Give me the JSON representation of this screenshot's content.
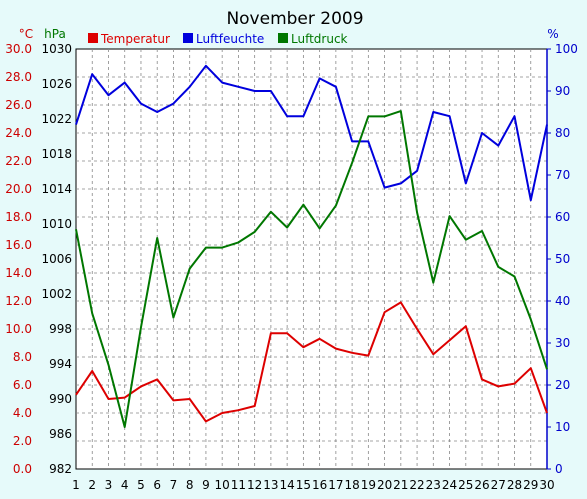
{
  "chart_data": {
    "type": "line",
    "title": "November 2009",
    "x": [
      "1",
      "2",
      "3",
      "4",
      "5",
      "6",
      "7",
      "8",
      "9",
      "10",
      "11",
      "12",
      "13",
      "14",
      "15",
      "16",
      "17",
      "18",
      "19",
      "20",
      "21",
      "22",
      "23",
      "24",
      "25",
      "26",
      "27",
      "28",
      "29",
      "30"
    ],
    "axes": {
      "temperature": {
        "unit": "°C",
        "min": 0,
        "max": 30,
        "step": 2,
        "ticks": [
          "0.0",
          "2.0",
          "4.0",
          "6.0",
          "8.0",
          "10.0",
          "12.0",
          "14.0",
          "16.0",
          "18.0",
          "20.0",
          "22.0",
          "24.0",
          "26.0",
          "28.0",
          "30.0"
        ],
        "color": "#cc0000"
      },
      "pressure": {
        "unit": "hPa",
        "min": 982,
        "max": 1030,
        "step": 4,
        "ticks": [
          "982",
          "986",
          "990",
          "994",
          "998",
          "1002",
          "1006",
          "1010",
          "1014",
          "1018",
          "1022",
          "1026",
          "1030"
        ],
        "color": "#007700"
      },
      "humidity": {
        "unit": "%",
        "min": 0,
        "max": 100,
        "step": 10,
        "ticks": [
          "0",
          "10",
          "20",
          "30",
          "40",
          "50",
          "60",
          "70",
          "80",
          "90",
          "100"
        ],
        "color": "#0000cc"
      }
    },
    "series": [
      {
        "name": "Temperatur",
        "axis": "temperature",
        "color": "#dd0000",
        "values": [
          5.3,
          7.0,
          5.0,
          5.1,
          5.9,
          6.4,
          4.9,
          5.0,
          3.4,
          4.0,
          4.2,
          4.5,
          9.7,
          9.7,
          8.7,
          9.3,
          8.6,
          8.3,
          8.1,
          11.2,
          11.9,
          10.0,
          8.2,
          9.2,
          10.2,
          6.4,
          5.9,
          6.1,
          7.2,
          4.0
        ]
      },
      {
        "name": "Luftfeuchte",
        "axis": "humidity",
        "color": "#0000dd",
        "values": [
          82,
          94,
          89,
          92,
          87,
          85,
          87,
          91,
          96,
          92,
          91,
          90,
          90,
          84,
          84,
          93,
          91,
          78,
          78,
          67,
          68,
          71,
          85,
          84,
          68,
          80,
          77,
          84,
          64,
          82
        ]
      },
      {
        "name": "Luftdruck",
        "axis": "pressure",
        "color": "#007700",
        "values": [
          1009.4,
          999.8,
          993.9,
          986.8,
          998.2,
          1008.4,
          999.3,
          1004.9,
          1007.3,
          1007.3,
          1007.9,
          1009.1,
          1011.4,
          1009.6,
          1012.2,
          1009.5,
          1012.1,
          1017.0,
          1022.3,
          1022.3,
          1022.9,
          1011.3,
          1003.3,
          1010.9,
          1008.2,
          1009.2,
          1005.1,
          1004.0,
          999.1,
          993.4
        ]
      }
    ],
    "grid": true,
    "legend": "top"
  }
}
